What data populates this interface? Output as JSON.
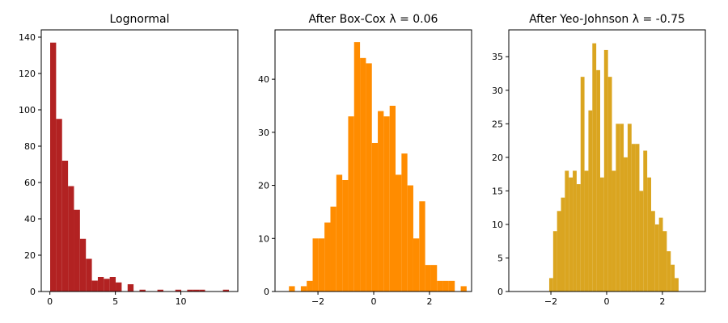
{
  "chart_data": [
    {
      "type": "histogram",
      "title": "Lognormal",
      "color": "#b22222",
      "bins": [
        0.02,
        0.475,
        0.93,
        1.385,
        1.84,
        2.295,
        2.75,
        3.205,
        3.66,
        4.115,
        4.57,
        5.025,
        5.48,
        5.935,
        6.39,
        6.845,
        7.3,
        7.755,
        8.21,
        8.665,
        9.12,
        9.575,
        10.03,
        10.485,
        10.94,
        11.395,
        11.85,
        12.305,
        12.76,
        13.215,
        13.67
      ],
      "values": [
        137,
        95,
        72,
        58,
        45,
        29,
        18,
        6,
        8,
        7,
        8,
        5,
        0,
        4,
        0,
        1,
        0,
        0,
        1,
        0,
        0,
        1,
        0,
        1,
        1,
        1,
        0,
        0,
        0,
        1
      ],
      "xlim": [
        -0.66,
        14.35
      ],
      "ylim": [
        0,
        144
      ],
      "xticks": [
        0,
        5,
        10
      ],
      "yticks": [
        0,
        20,
        40,
        60,
        80,
        100,
        120,
        140
      ]
    },
    {
      "type": "histogram",
      "title": "After Box-Cox λ = 0.06",
      "color": "#ff8c00",
      "bins": [
        -3.04,
        -2.828,
        -2.615,
        -2.403,
        -2.19,
        -1.978,
        -1.766,
        -1.553,
        -1.341,
        -1.128,
        -0.916,
        -0.704,
        -0.491,
        -0.279,
        -0.066,
        0.146,
        0.358,
        0.571,
        0.783,
        0.996,
        1.208,
        1.42,
        1.633,
        1.845,
        2.058,
        2.27,
        2.482,
        2.695,
        2.907,
        3.12,
        3.332
      ],
      "values": [
        1,
        0,
        1,
        2,
        10,
        10,
        13,
        16,
        22,
        21,
        33,
        47,
        44,
        43,
        28,
        34,
        33,
        35,
        22,
        26,
        20,
        10,
        17,
        5,
        5,
        2,
        2,
        2,
        0,
        1
      ],
      "xlim": [
        -3.54,
        3.51
      ],
      "ylim": [
        0,
        49.3
      ],
      "xticks": [
        {
          "value": -2,
          "label": "−2"
        },
        0,
        2
      ],
      "yticks": [
        0,
        10,
        20,
        30,
        40
      ]
    },
    {
      "type": "histogram",
      "title": "After Yeo-Johnson λ = -0.75",
      "color": "#daa520",
      "bins": [
        -2.06,
        -1.919,
        -1.779,
        -1.638,
        -1.498,
        -1.357,
        -1.216,
        -1.076,
        -0.935,
        -0.795,
        -0.654,
        -0.513,
        -0.373,
        -0.232,
        -0.092,
        0.049,
        0.19,
        0.33,
        0.471,
        0.611,
        0.752,
        0.893,
        1.033,
        1.174,
        1.314,
        1.455,
        1.596,
        1.736,
        1.877,
        2.017,
        2.158,
        2.299,
        2.439,
        2.58
      ],
      "values": [
        2,
        9,
        12,
        14,
        18,
        17,
        18,
        16,
        32,
        18,
        27,
        37,
        33,
        17,
        36,
        32,
        18,
        25,
        25,
        20,
        25,
        22,
        22,
        15,
        21,
        17,
        12,
        10,
        11,
        9,
        6,
        4,
        2
      ],
      "xlim": [
        -3.51,
        3.54
      ],
      "ylim": [
        0,
        39
      ],
      "xticks": [
        {
          "value": -2,
          "label": "−2"
        },
        0,
        2
      ],
      "yticks": [
        0,
        5,
        10,
        15,
        20,
        25,
        30,
        35
      ]
    }
  ]
}
